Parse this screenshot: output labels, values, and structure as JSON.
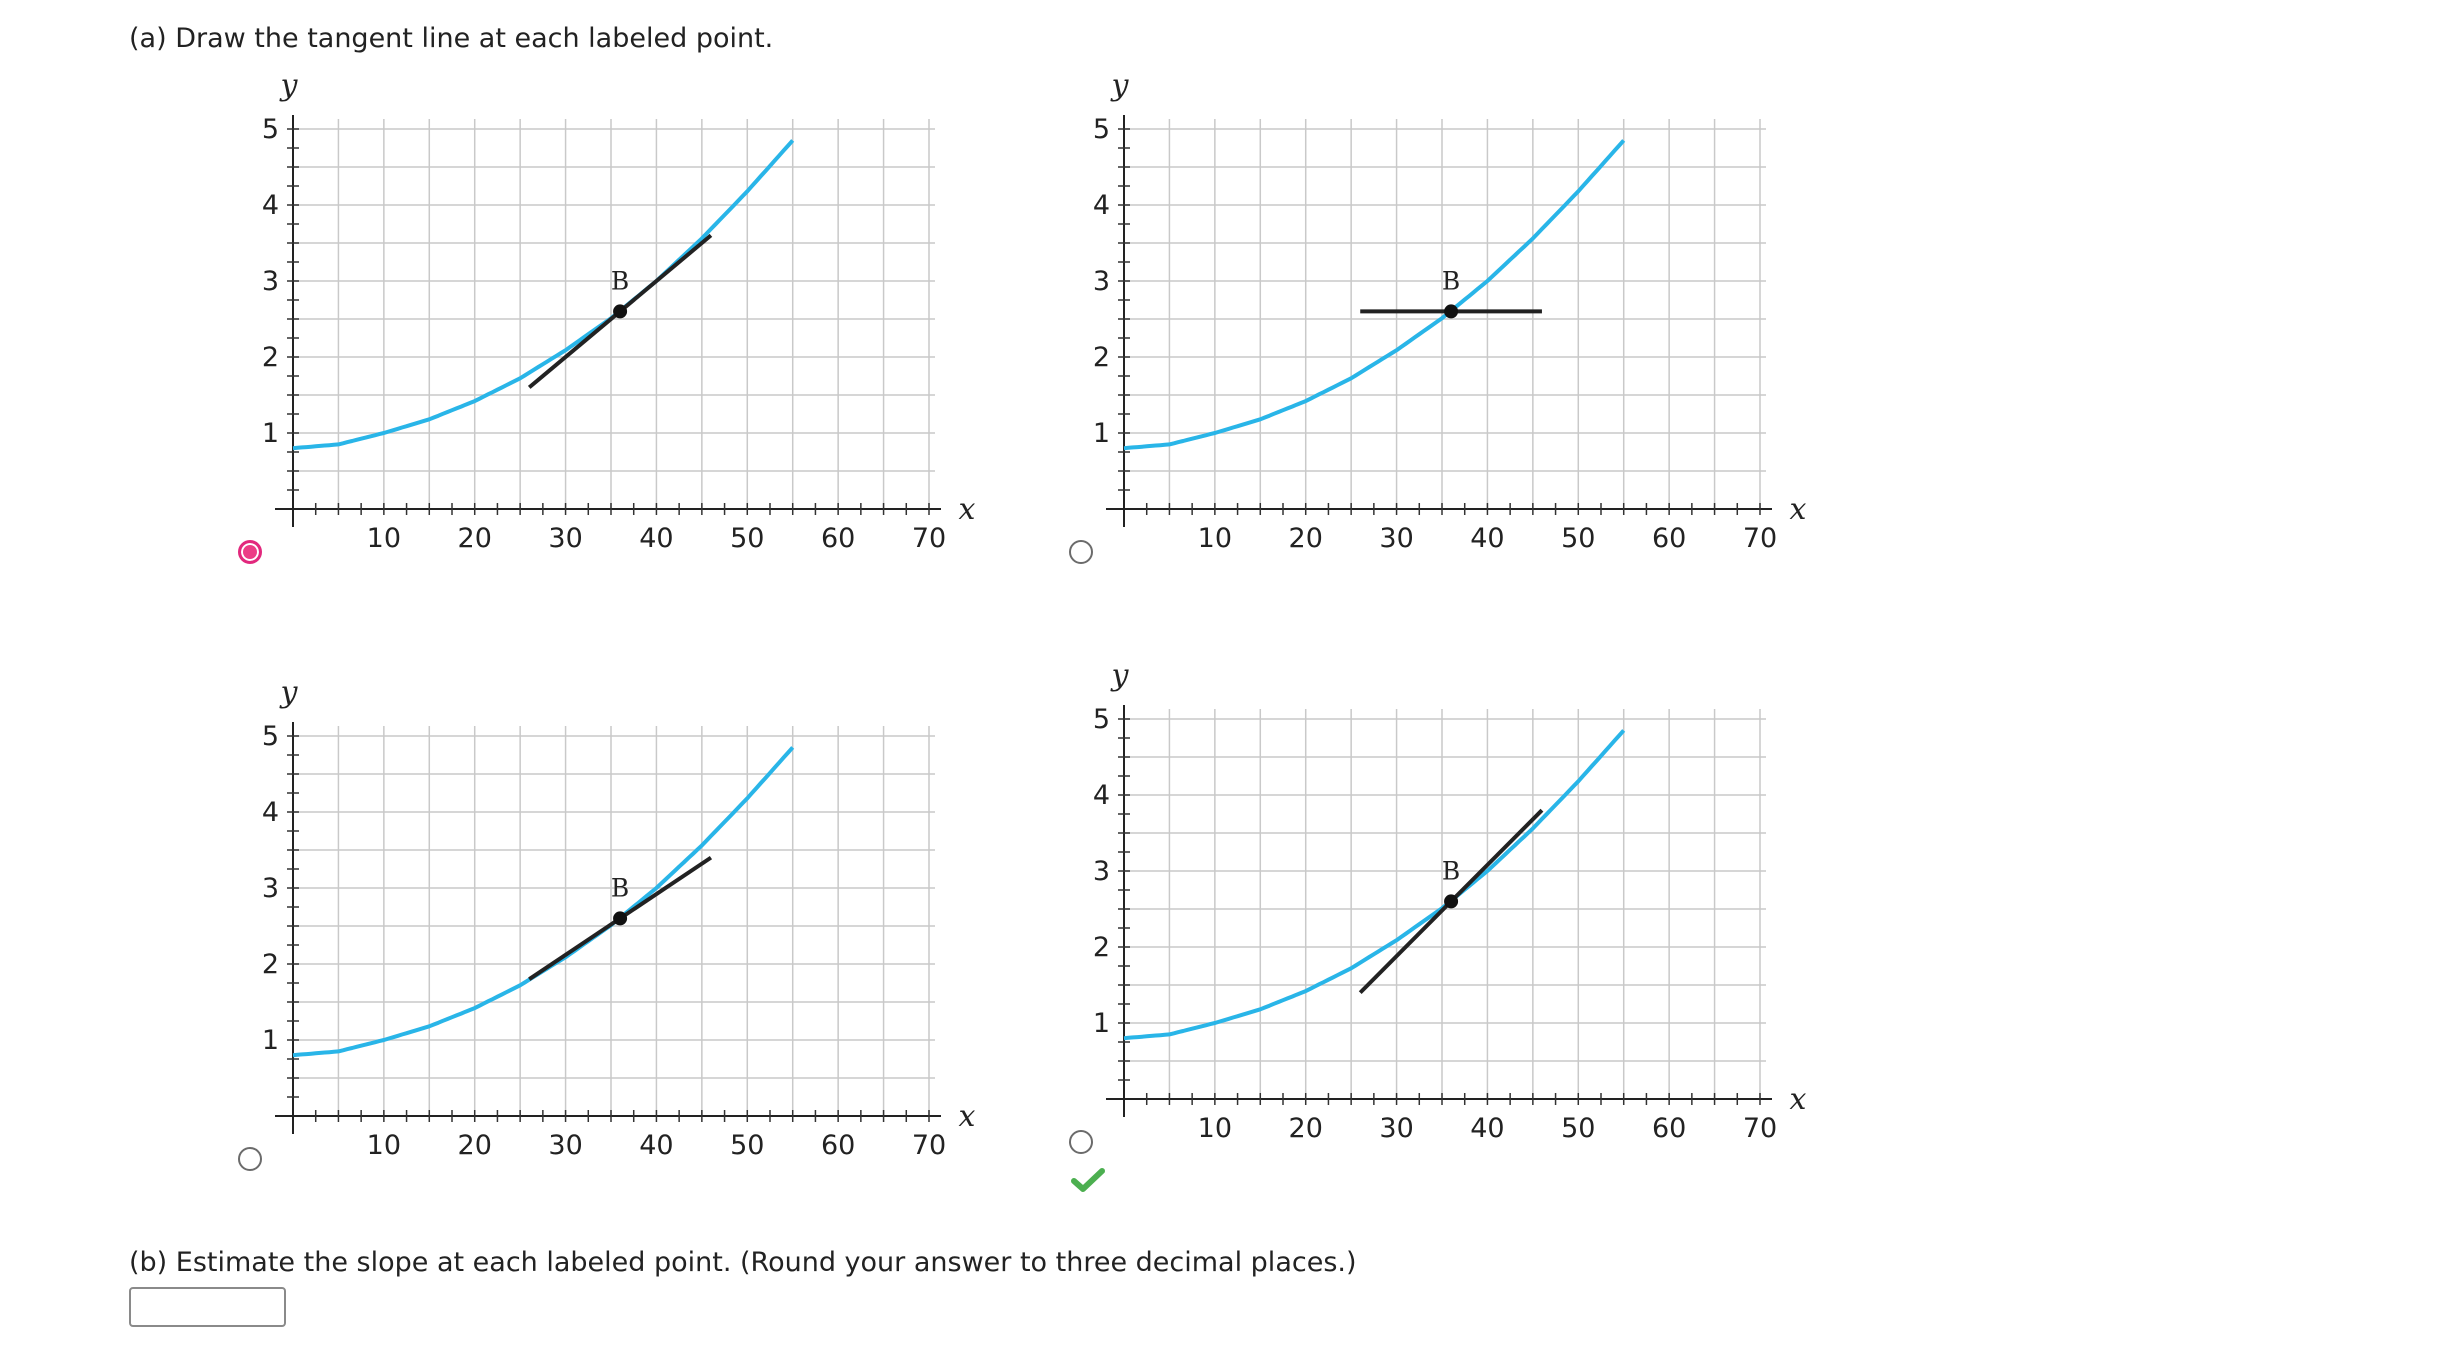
{
  "question": {
    "part_a": "(a) Draw the tangent line at each labeled point.",
    "part_b": "(b) Estimate the slope at each labeled point. (Round your answer to three decimal places.)"
  },
  "answer": {
    "value": "",
    "placeholder": ""
  },
  "colors": {
    "curve": "#29b5e8",
    "tangent": "#222222",
    "grid": "#c9c9c9",
    "radio_selected": "#e2287d",
    "check": "#4caf50"
  },
  "chart_data": [
    {
      "type": "line",
      "option_index": 1,
      "selected": true,
      "marked_correct": false,
      "xlabel": "x",
      "ylabel": "y",
      "xlim": [
        0,
        70
      ],
      "ylim": [
        0,
        5
      ],
      "x_ticks": [
        "10",
        "20",
        "30",
        "40",
        "50",
        "60",
        "70"
      ],
      "y_ticks": [
        "1",
        "2",
        "3",
        "4",
        "5"
      ],
      "grid": true,
      "curve": {
        "x": [
          0,
          5,
          10,
          15,
          20,
          25,
          30,
          35,
          40,
          45,
          50,
          55
        ],
        "y": [
          0.8,
          0.85,
          1.0,
          1.18,
          1.42,
          1.72,
          2.09,
          2.51,
          3.0,
          3.56,
          4.18,
          4.85
        ]
      },
      "point": {
        "label": "B",
        "x": 36,
        "y": 2.6
      },
      "tangent": {
        "x": [
          26,
          46
        ],
        "y": [
          1.6,
          3.6
        ]
      }
    },
    {
      "type": "line",
      "option_index": 2,
      "selected": false,
      "marked_correct": false,
      "xlabel": "x",
      "ylabel": "y",
      "xlim": [
        0,
        70
      ],
      "ylim": [
        0,
        5
      ],
      "x_ticks": [
        "10",
        "20",
        "30",
        "40",
        "50",
        "60",
        "70"
      ],
      "y_ticks": [
        "1",
        "2",
        "3",
        "4",
        "5"
      ],
      "grid": true,
      "curve": {
        "x": [
          0,
          5,
          10,
          15,
          20,
          25,
          30,
          35,
          40,
          45,
          50,
          55
        ],
        "y": [
          0.8,
          0.85,
          1.0,
          1.18,
          1.42,
          1.72,
          2.09,
          2.51,
          3.0,
          3.56,
          4.18,
          4.85
        ]
      },
      "point": {
        "label": "B",
        "x": 36,
        "y": 2.6
      },
      "tangent": {
        "x": [
          26,
          46
        ],
        "y": [
          2.6,
          2.6
        ]
      }
    },
    {
      "type": "line",
      "option_index": 3,
      "selected": false,
      "marked_correct": false,
      "xlabel": "x",
      "ylabel": "y",
      "xlim": [
        0,
        70
      ],
      "ylim": [
        0,
        5
      ],
      "x_ticks": [
        "10",
        "20",
        "30",
        "40",
        "50",
        "60",
        "70"
      ],
      "y_ticks": [
        "1",
        "2",
        "3",
        "4",
        "5"
      ],
      "grid": true,
      "curve": {
        "x": [
          0,
          5,
          10,
          15,
          20,
          25,
          30,
          35,
          40,
          45,
          50,
          55
        ],
        "y": [
          0.8,
          0.85,
          1.0,
          1.18,
          1.42,
          1.72,
          2.09,
          2.51,
          3.0,
          3.56,
          4.18,
          4.85
        ]
      },
      "point": {
        "label": "B",
        "x": 36,
        "y": 2.6
      },
      "tangent": {
        "x": [
          26,
          46
        ],
        "y": [
          1.8,
          3.4
        ]
      }
    },
    {
      "type": "line",
      "option_index": 4,
      "selected": false,
      "marked_correct": true,
      "xlabel": "x",
      "ylabel": "y",
      "xlim": [
        0,
        70
      ],
      "ylim": [
        0,
        5
      ],
      "x_ticks": [
        "10",
        "20",
        "30",
        "40",
        "50",
        "60",
        "70"
      ],
      "y_ticks": [
        "1",
        "2",
        "3",
        "4",
        "5"
      ],
      "grid": true,
      "curve": {
        "x": [
          0,
          5,
          10,
          15,
          20,
          25,
          30,
          35,
          40,
          45,
          50,
          55
        ],
        "y": [
          0.8,
          0.85,
          1.0,
          1.18,
          1.42,
          1.72,
          2.09,
          2.51,
          3.0,
          3.56,
          4.18,
          4.85
        ]
      },
      "point": {
        "label": "B",
        "x": 36,
        "y": 2.6
      },
      "tangent": {
        "x": [
          26,
          46
        ],
        "y": [
          1.4,
          3.8
        ]
      }
    }
  ]
}
